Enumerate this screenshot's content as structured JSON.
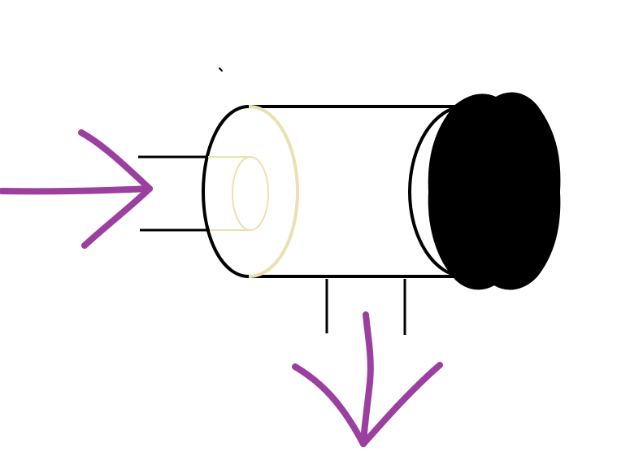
{
  "diagram": {
    "subject": "cylinder-with-side-inlet-and-bottom-outlet",
    "colors": {
      "background": "#ffffff",
      "outline": "#000000",
      "inner_tube": "#ede0b0",
      "arrow": "#9b3fa0",
      "end_cap": "#000000"
    },
    "arrows": [
      {
        "name": "inflow-arrow",
        "direction": "right"
      },
      {
        "name": "outflow-arrow",
        "direction": "down"
      }
    ]
  }
}
